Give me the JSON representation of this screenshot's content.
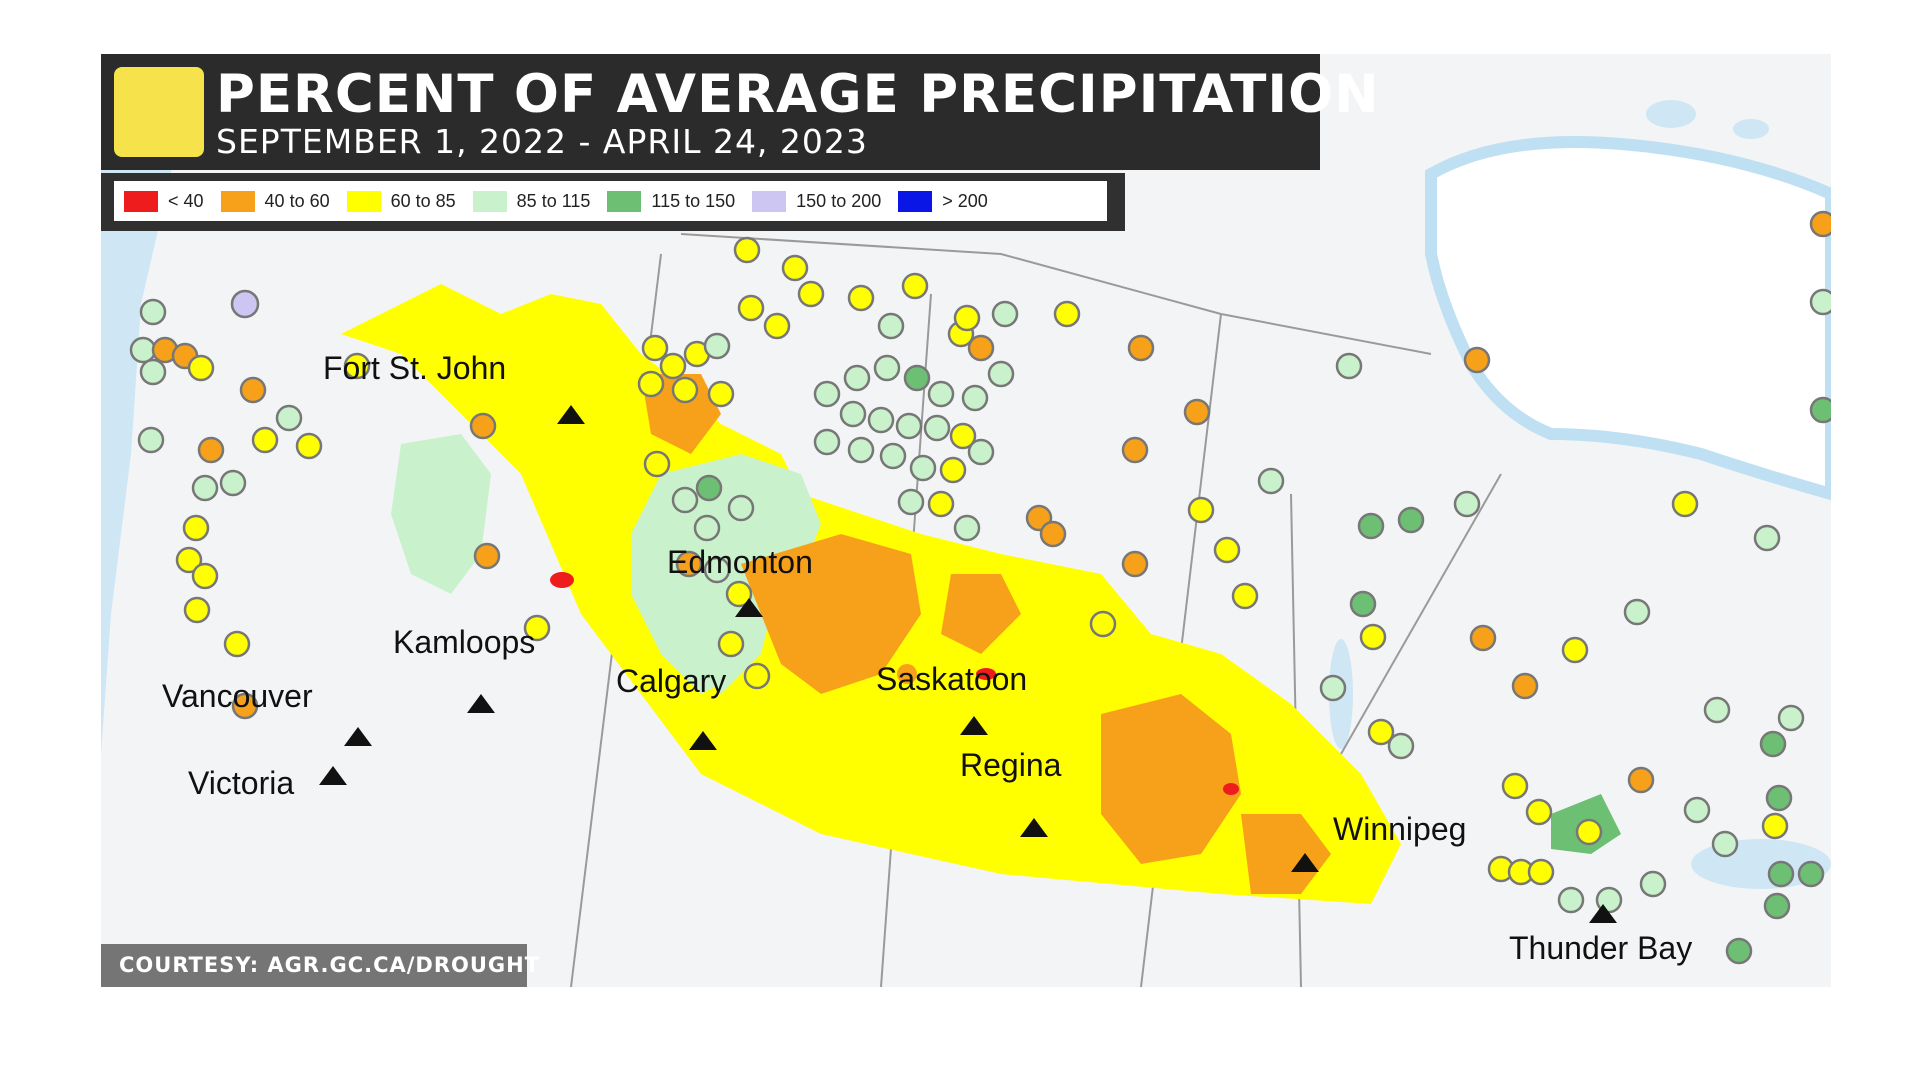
{
  "title": "PERCENT OF AVERAGE PRECIPITATION",
  "subtitle": "SEPTEMBER 1, 2022 - APRIL 24, 2023",
  "courtesy": "COURTESY: AGR.GC.CA/DROUGHT",
  "legend": [
    {
      "label": "< 40",
      "color": "#ee1c1c"
    },
    {
      "label": "40 to 60",
      "color": "#f7a11a"
    },
    {
      "label": "60 to 85",
      "color": "#ffff00"
    },
    {
      "label": "85 to 115",
      "color": "#c9f2cc"
    },
    {
      "label": "115 to 150",
      "color": "#6dbf73"
    },
    {
      "label": "150 to 200",
      "color": "#cdc6f2"
    },
    {
      "label": "> 200",
      "color": "#0a16e6"
    }
  ],
  "cities": [
    {
      "name": "Fort St. John"
    },
    {
      "name": "Edmonton"
    },
    {
      "name": "Kamloops"
    },
    {
      "name": "Calgary"
    },
    {
      "name": "Saskatoon"
    },
    {
      "name": "Vancouver"
    },
    {
      "name": "Regina"
    },
    {
      "name": "Victoria"
    },
    {
      "name": "Winnipeg"
    },
    {
      "name": "Thunder Bay"
    }
  ]
}
